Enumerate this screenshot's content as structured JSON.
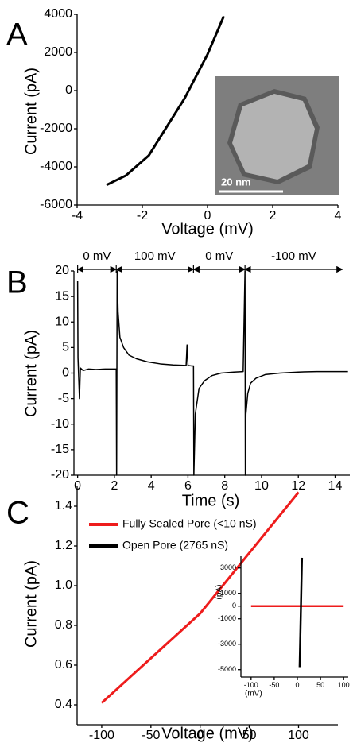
{
  "chart_data": [
    {
      "type": "line",
      "panel_label": "A",
      "x_label": "Voltage (mV)",
      "y_label": "Current (pA)",
      "x": [
        -3.1,
        -2.5,
        -1.8,
        -0.7,
        0,
        0.5
      ],
      "values": [
        -4950,
        -4450,
        -3400,
        -400,
        1900,
        3900
      ],
      "color": "#000000",
      "xlim": [
        -4,
        4
      ],
      "ylim": [
        -6000,
        4000
      ],
      "xticks": [
        -4,
        -2,
        0,
        2,
        4
      ],
      "yticks": [
        -6000,
        -4000,
        -2000,
        0,
        2000,
        4000
      ],
      "scale_bar": "20 nm"
    },
    {
      "type": "line",
      "panel_label": "B",
      "x_label": "Time (s)",
      "y_label": "Current (pA)",
      "x": [
        0,
        0.02,
        0.1,
        0.15,
        0.3,
        0.6,
        1.0,
        1.5,
        2.0,
        2.1,
        2.12,
        2.15,
        2.2,
        2.3,
        2.5,
        2.8,
        3.2,
        3.8,
        4.5,
        5.2,
        5.9,
        5.95,
        6.0,
        6.2,
        6.3,
        6.32,
        6.4,
        6.6,
        6.9,
        7.3,
        7.8,
        8.5,
        9.0,
        9.1,
        9.12,
        9.15,
        9.25,
        9.4,
        9.7,
        10.2,
        11,
        12,
        13,
        14,
        14.7
      ],
      "values": [
        18,
        3,
        -5,
        1,
        0.5,
        0.8,
        0.7,
        0.8,
        0.8,
        0.8,
        -20,
        20,
        12,
        7,
        5,
        3.5,
        2.8,
        2.2,
        1.8,
        1.6,
        1.5,
        5.5,
        1.5,
        1.4,
        1.4,
        -20,
        -8,
        -3,
        -1.5,
        -0.5,
        0,
        0.2,
        0.3,
        20,
        -20,
        -8,
        -4,
        -2,
        -1,
        -0.3,
        0,
        0.2,
        0.3,
        0.3,
        0.3
      ],
      "color": "#000000",
      "xlim": [
        -0.2,
        14.8
      ],
      "ylim": [
        -20,
        20
      ],
      "xticks": [
        0,
        2,
        4,
        6,
        8,
        10,
        12,
        14
      ],
      "yticks": [
        -20,
        -15,
        -10,
        -5,
        0,
        5,
        10,
        15,
        20
      ],
      "annotations": [
        {
          "text": "0 mV",
          "x0": 0,
          "x1": 2.1
        },
        {
          "text": "100 mV",
          "x0": 2.1,
          "x1": 6.3
        },
        {
          "text": "0 mV",
          "x0": 6.3,
          "x1": 9.1
        },
        {
          "text": "-100 mV",
          "x0": 9.1,
          "x1": 14.4
        }
      ]
    },
    {
      "type": "line",
      "panel_label": "C",
      "x_label": "Voltage (mV)",
      "y_label": "Current (pA)",
      "legend": "upper left",
      "x": [
        -100,
        0,
        100
      ],
      "series": [
        {
          "name": "Fully Sealed Pore (<10 nS)",
          "color": "#ee1c1c",
          "values": [
            0.41,
            0.86,
            1.47
          ]
        },
        {
          "name": "Open Pore (2765 nS)",
          "color": "#000000",
          "values": [
            null,
            null,
            null
          ]
        }
      ],
      "xlim": [
        -125,
        140
      ],
      "ylim": [
        0.3,
        1.5
      ],
      "xticks": [
        -100,
        -50,
        0,
        50,
        100
      ],
      "yticks": [
        0.4,
        0.6,
        0.8,
        {
          "value": 1,
          "label": "1.0"
        },
        1.2,
        1.4
      ]
    },
    {
      "type": "line",
      "x_label": "(mV)",
      "y_label": "(pA)",
      "series": [
        {
          "color": "#ee1c1c",
          "x": [
            -100,
            100
          ],
          "values": [
            0,
            0
          ]
        },
        {
          "color": "#000000",
          "x": [
            5,
            10
          ],
          "values": [
            -4800,
            3800
          ]
        }
      ],
      "xlim": [
        -122,
        110
      ],
      "ylim": [
        -5580,
        3920
      ],
      "xticks": [
        -100,
        -50,
        0,
        50,
        100
      ],
      "yticks": [
        -5000,
        -3000,
        -1000,
        0,
        1000,
        3000
      ]
    }
  ]
}
